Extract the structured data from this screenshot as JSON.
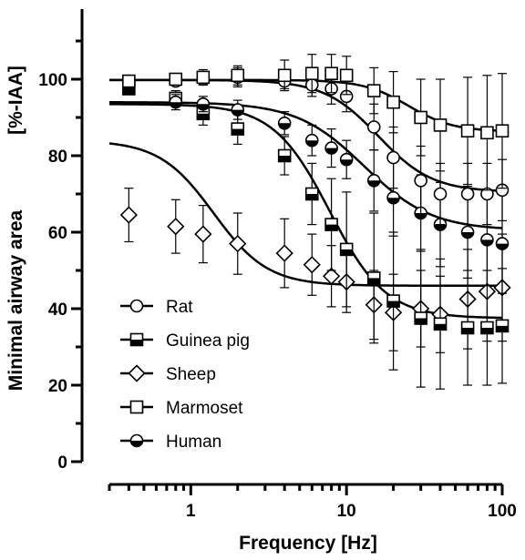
{
  "chart_data": {
    "type": "scatter",
    "title": "",
    "xlabel": "Frequency [Hz]",
    "ylabel": "Minimal airway area",
    "ylabel_unit": "[%-IAA]",
    "x_scale": "log",
    "xlim": [
      0.3,
      100
    ],
    "ylim": [
      0,
      120
    ],
    "x_tick_labels": [
      "1",
      "10",
      "100"
    ],
    "y_tick_labels": [
      "0",
      "20",
      "40",
      "60",
      "80",
      "100"
    ],
    "legend_position": "lower-left",
    "series": [
      {
        "name": "Rat",
        "marker": "circle-open",
        "x": [
          0.4,
          0.8,
          1.2,
          2,
          4,
          6,
          8,
          10,
          15,
          20,
          30,
          40,
          60,
          80,
          100
        ],
        "y": [
          99.5,
          99.5,
          100,
          100.5,
          99.5,
          98.5,
          97.5,
          95.5,
          87.5,
          79.5,
          73.5,
          70,
          70,
          70,
          71
        ],
        "err": [
          1,
          1,
          1.5,
          2.5,
          2,
          3,
          4,
          4,
          6,
          8,
          9,
          8,
          8,
          8,
          8
        ],
        "fit": {
          "top": 99.8,
          "bottom": 70.5,
          "ec50": 16,
          "hill": 2.5
        }
      },
      {
        "name": "Guinea pig",
        "marker": "square-half",
        "x": [
          0.4,
          0.8,
          1.2,
          2,
          4,
          6,
          8,
          10,
          15,
          20,
          30,
          40,
          60,
          80,
          100
        ],
        "y": [
          97.5,
          95,
          91,
          87,
          80,
          70,
          62,
          55.5,
          48,
          42,
          37.5,
          36,
          35,
          35,
          35.5
        ],
        "err": [
          1.5,
          2,
          3,
          4,
          5,
          8,
          12,
          15,
          17,
          18,
          18,
          17,
          15,
          15,
          15
        ],
        "fit": {
          "top": 93.5,
          "bottom": 37.5,
          "ec50": 7.8,
          "hill": 2.4
        }
      },
      {
        "name": "Sheep",
        "marker": "diamond-open",
        "x": [
          0.4,
          0.8,
          1.2,
          2,
          4,
          6,
          8,
          10,
          15,
          20,
          30,
          40,
          60,
          80,
          100
        ],
        "y": [
          64.5,
          61.5,
          59.5,
          57,
          54.5,
          51.5,
          48.5,
          47,
          41,
          39,
          40,
          38.5,
          42.5,
          44.5,
          45.5
        ],
        "err": [
          7,
          7,
          7.5,
          8,
          9,
          8,
          8,
          8,
          9,
          10,
          10,
          10,
          13,
          13,
          14
        ],
        "fit": {
          "top": 84,
          "bottom": 46,
          "ec50": 1.4,
          "hill": 2.5
        }
      },
      {
        "name": "Marmoset",
        "marker": "square-open",
        "x": [
          0.4,
          0.8,
          1.2,
          2,
          4,
          6,
          8,
          10,
          15,
          20,
          30,
          40,
          60,
          80,
          100
        ],
        "y": [
          99.5,
          100,
          100.5,
          101,
          101,
          101.5,
          101.5,
          101,
          97,
          94,
          90,
          88,
          86.5,
          86,
          86.5
        ],
        "err": [
          1.5,
          1.5,
          2,
          2.5,
          4,
          5,
          5,
          5,
          6,
          8,
          10,
          12,
          14,
          15,
          15
        ],
        "fit": {
          "top": 99.8,
          "bottom": 86.3,
          "ec50": 25,
          "hill": 3
        }
      },
      {
        "name": "Human",
        "marker": "circle-half",
        "x": [
          0.4,
          0.8,
          1.2,
          2,
          4,
          6,
          8,
          10,
          15,
          20,
          30,
          40,
          60,
          80,
          100
        ],
        "y": [
          98,
          94,
          93.5,
          92,
          88.5,
          84,
          82,
          79,
          73.5,
          69,
          65,
          62,
          60,
          58,
          57
        ],
        "err": [
          1.5,
          2,
          2,
          2.5,
          3,
          4,
          5,
          5,
          8,
          10,
          10,
          11,
          12,
          12,
          13
        ],
        "fit": {
          "top": 94,
          "bottom": 60.5,
          "ec50": 13,
          "hill": 2
        }
      }
    ]
  }
}
